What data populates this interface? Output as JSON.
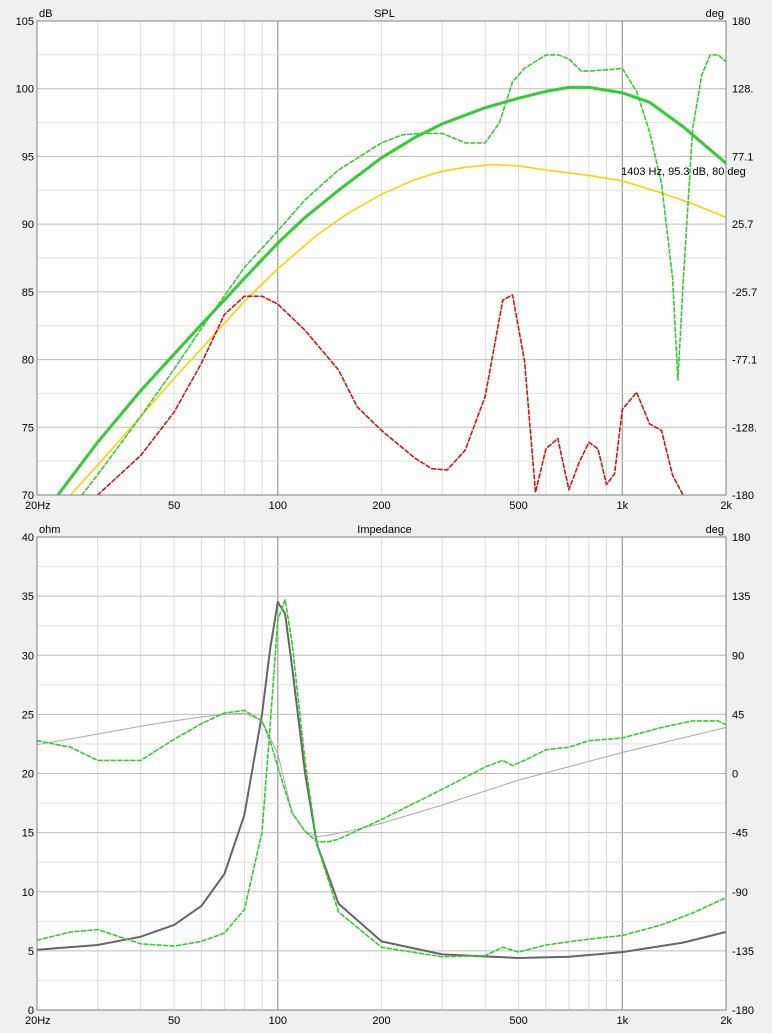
{
  "chart_data": [
    {
      "type": "line",
      "title": "SPL",
      "xlabel": "",
      "ylabel": "dB",
      "y2label": "deg",
      "xscale": "log",
      "xlim": [
        20,
        2000
      ],
      "ylim": [
        70,
        105
      ],
      "y2lim": [
        -180,
        180
      ],
      "grid": true,
      "x_ticks": [
        {
          "v": 20,
          "label": "20Hz"
        },
        {
          "v": 50,
          "label": "50"
        },
        {
          "v": 100,
          "label": "100"
        },
        {
          "v": 200,
          "label": "200"
        },
        {
          "v": 500,
          "label": "500"
        },
        {
          "v": 1000,
          "label": "1k"
        },
        {
          "v": 2000,
          "label": "2k"
        }
      ],
      "y_ticks": [
        {
          "v": 70,
          "label": "70"
        },
        {
          "v": 75,
          "label": "75"
        },
        {
          "v": 80,
          "label": "80"
        },
        {
          "v": 85,
          "label": "85"
        },
        {
          "v": 90,
          "label": "90"
        },
        {
          "v": 95,
          "label": "95"
        },
        {
          "v": 100,
          "label": "100"
        },
        {
          "v": 105,
          "label": "105"
        }
      ],
      "y2_ticks": [
        {
          "v": -180,
          "label": "-180"
        },
        {
          "v": -128.6,
          "label": "-128."
        },
        {
          "v": -77.1,
          "label": "-77.1"
        },
        {
          "v": -25.7,
          "label": "-25.7"
        },
        {
          "v": 25.7,
          "label": "25.7"
        },
        {
          "v": 77.1,
          "label": "77.1"
        },
        {
          "v": 128.6,
          "label": "128."
        },
        {
          "v": 180,
          "label": "180"
        }
      ],
      "annotation": "1403 Hz, 95.3 dB, 80 deg",
      "series": [
        {
          "color": "#ffd200",
          "axis": "left",
          "style": "solid",
          "width": 1.6,
          "x": [
            25,
            30,
            40,
            50,
            60,
            80,
            100,
            130,
            160,
            200,
            250,
            300,
            350,
            420,
            500,
            600,
            800,
            1000,
            1300,
            1600,
            2000
          ],
          "y": [
            70,
            72.2,
            75.8,
            78.6,
            80.8,
            84.3,
            86.7,
            89.2,
            90.8,
            92.2,
            93.3,
            93.9,
            94.2,
            94.4,
            94.3,
            94.0,
            93.6,
            93.2,
            92.3,
            91.5,
            90.5
          ]
        },
        {
          "color": "#33cc33",
          "axis": "left",
          "style": "solid",
          "width": 3,
          "x": [
            23,
            30,
            40,
            50,
            60,
            70,
            80,
            100,
            120,
            150,
            200,
            250,
            300,
            400,
            500,
            600,
            700,
            800,
            1000,
            1200,
            1500,
            2000
          ],
          "y": [
            70,
            73.9,
            77.7,
            80.4,
            82.6,
            84.4,
            86.0,
            88.6,
            90.5,
            92.5,
            94.9,
            96.4,
            97.4,
            98.6,
            99.3,
            99.8,
            100.1,
            100.1,
            99.7,
            99.0,
            97.2,
            94.5
          ]
        },
        {
          "color": "#33cc33",
          "axis": "left",
          "style": "dashed",
          "width": 1.6,
          "x": [
            27,
            30,
            40,
            50,
            60,
            80,
            100,
            120,
            150,
            200,
            230,
            260,
            300,
            350,
            400,
            440,
            480,
            520,
            600,
            650,
            700,
            760,
            800,
            900,
            1000,
            1100,
            1200,
            1300,
            1400,
            1450,
            1500,
            1600,
            1700,
            1800,
            1900,
            2000
          ],
          "y": [
            70,
            71.5,
            75.8,
            79.3,
            82.3,
            86.8,
            89.5,
            91.8,
            94.0,
            96.0,
            96.6,
            96.7,
            96.7,
            96.0,
            96.0,
            97.5,
            100.5,
            101.5,
            102.5,
            102.5,
            102.2,
            101.3,
            101.3,
            101.4,
            101.5,
            99.8,
            96.8,
            93.0,
            86.0,
            78.5,
            85.5,
            97.0,
            101.0,
            102.5,
            102.5,
            102.0
          ]
        },
        {
          "color": "#dd1111",
          "axis": "right",
          "style": "dashed",
          "width": 1.6,
          "x": [
            30,
            40,
            50,
            60,
            70,
            80,
            90,
            100,
            120,
            150,
            170,
            200,
            250,
            280,
            310,
            350,
            400,
            450,
            480,
            520,
            560,
            600,
            650,
            700,
            750,
            800,
            850,
            900,
            950,
            1000,
            1100,
            1200,
            1300,
            1400,
            1500
          ],
          "y": [
            -180,
            -150,
            -117,
            -80,
            -43,
            -29,
            -29,
            -35,
            -55,
            -85,
            -113,
            -131,
            -152,
            -160,
            -161,
            -146,
            -105,
            -32,
            -28,
            -78,
            -178,
            -145,
            -137,
            -176,
            -155,
            -140,
            -145,
            -172,
            -164,
            -115,
            -102,
            -126,
            -131,
            -165,
            -180
          ]
        }
      ]
    },
    {
      "type": "line",
      "title": "Impedance",
      "xlabel": "",
      "ylabel": "ohm",
      "y2label": "deg",
      "xscale": "log",
      "xlim": [
        20,
        2000
      ],
      "ylim": [
        0,
        40
      ],
      "y2lim": [
        -180,
        180
      ],
      "grid": true,
      "x_ticks": [
        {
          "v": 20,
          "label": "20Hz"
        },
        {
          "v": 50,
          "label": "50"
        },
        {
          "v": 100,
          "label": "100"
        },
        {
          "v": 200,
          "label": "200"
        },
        {
          "v": 500,
          "label": "500"
        },
        {
          "v": 1000,
          "label": "1k"
        },
        {
          "v": 2000,
          "label": "2k"
        }
      ],
      "y_ticks": [
        {
          "v": 0,
          "label": "0"
        },
        {
          "v": 5,
          "label": "5"
        },
        {
          "v": 10,
          "label": "10"
        },
        {
          "v": 15,
          "label": "15"
        },
        {
          "v": 20,
          "label": "20"
        },
        {
          "v": 25,
          "label": "25"
        },
        {
          "v": 30,
          "label": "30"
        },
        {
          "v": 35,
          "label": "35"
        },
        {
          "v": 40,
          "label": "40"
        }
      ],
      "y2_ticks": [
        {
          "v": -180,
          "label": "-180"
        },
        {
          "v": -135,
          "label": "-135"
        },
        {
          "v": -90,
          "label": "-90"
        },
        {
          "v": -45,
          "label": "-45"
        },
        {
          "v": 0,
          "label": "0"
        },
        {
          "v": 45,
          "label": "45"
        },
        {
          "v": 90,
          "label": "90"
        },
        {
          "v": 135,
          "label": "135"
        },
        {
          "v": 180,
          "label": "180"
        }
      ],
      "series": [
        {
          "color": "#aaaaaa",
          "axis": "right",
          "style": "solid",
          "width": 1,
          "x": [
            20,
            30,
            40,
            50,
            60,
            70,
            80,
            90,
            100,
            110,
            120,
            130,
            140,
            160,
            200,
            300,
            500,
            1000,
            2000
          ],
          "y": [
            22,
            30,
            36,
            40,
            43,
            45,
            46,
            40,
            15,
            -30,
            -44,
            -48,
            -47,
            -44,
            -38,
            -24,
            -5,
            16,
            35
          ]
        },
        {
          "color": "#666666",
          "axis": "left",
          "style": "solid",
          "width": 2,
          "x": [
            20,
            30,
            40,
            50,
            60,
            70,
            80,
            90,
            95,
            100,
            105,
            110,
            120,
            130,
            150,
            200,
            300,
            500,
            700,
            1000,
            1500,
            2000
          ],
          "y": [
            5.1,
            5.5,
            6.2,
            7.2,
            8.8,
            11.5,
            16.5,
            25,
            30.5,
            34.5,
            33.5,
            29,
            20,
            14,
            9,
            5.8,
            4.7,
            4.4,
            4.5,
            4.9,
            5.7,
            6.6
          ]
        },
        {
          "color": "#33cc33",
          "axis": "left",
          "style": "dashed",
          "width": 1.6,
          "x": [
            20,
            25,
            30,
            40,
            50,
            60,
            70,
            80,
            90,
            95,
            100,
            105,
            110,
            120,
            130,
            150,
            200,
            300,
            400,
            450,
            500,
            600,
            800,
            1000,
            1300,
            1600,
            2000
          ],
          "y": [
            5.9,
            6.6,
            6.8,
            5.6,
            5.4,
            5.8,
            6.5,
            8.5,
            15,
            24,
            33,
            34.7,
            31,
            21,
            14,
            8.3,
            5.3,
            4.5,
            4.6,
            5.3,
            4.9,
            5.5,
            6.0,
            6.3,
            7.2,
            8.2,
            9.5
          ]
        },
        {
          "color": "#33cc33",
          "axis": "right",
          "style": "dashed",
          "width": 1.6,
          "x": [
            20,
            25,
            30,
            40,
            50,
            60,
            70,
            80,
            90,
            95,
            100,
            110,
            120,
            130,
            140,
            150,
            200,
            300,
            400,
            450,
            480,
            520,
            600,
            700,
            800,
            1000,
            1300,
            1600,
            1900,
            2000
          ],
          "y": [
            25,
            20,
            10,
            10,
            26,
            38,
            46,
            48,
            40,
            25,
            5,
            -30,
            -44,
            -52,
            -52,
            -50,
            -35,
            -12,
            5,
            10,
            6,
            10,
            18,
            20,
            25,
            27,
            35,
            40,
            40,
            37
          ]
        }
      ]
    }
  ]
}
